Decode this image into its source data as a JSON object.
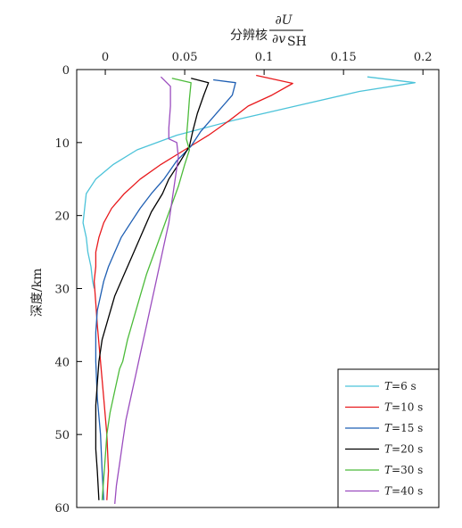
{
  "chart_data": {
    "type": "line",
    "orientation": "x-top, y-inverted (depth increases downward)",
    "xlabel_prefix": "分辨核",
    "xlabel_numerator": "∂U",
    "xlabel_denominator": "∂v",
    "xlabel_denominator_subscript": "SH",
    "ylabel": "深度/km",
    "xlim": [
      -0.018,
      0.21
    ],
    "ylim": [
      0,
      60
    ],
    "xticks": [
      0,
      0.05,
      0.1,
      0.15,
      0.2
    ],
    "xtick_labels": [
      "0",
      "0.05",
      "0.1",
      "0.15",
      "0.2"
    ],
    "yticks": [
      0,
      10,
      20,
      30,
      40,
      50,
      60
    ],
    "ytick_labels": [
      "0",
      "10",
      "20",
      "30",
      "40",
      "50",
      "60"
    ],
    "grid": false,
    "legend_position": "bottom-right",
    "series": [
      {
        "name": "T=6 s",
        "legend_var": "T",
        "legend_rest": "=6 s",
        "color": "#4cc3d9",
        "points": [
          [
            0.165,
            1
          ],
          [
            0.195,
            1.8
          ],
          [
            0.16,
            3
          ],
          [
            0.12,
            5
          ],
          [
            0.08,
            7
          ],
          [
            0.045,
            9
          ],
          [
            0.02,
            11
          ],
          [
            0.005,
            13
          ],
          [
            -0.006,
            15
          ],
          [
            -0.012,
            17
          ],
          [
            -0.013,
            19
          ],
          [
            -0.014,
            21
          ],
          [
            -0.012,
            23
          ],
          [
            -0.011,
            25
          ],
          [
            -0.009,
            27
          ],
          [
            -0.008,
            29
          ],
          [
            -0.007,
            30
          ]
        ]
      },
      {
        "name": "T=10 s",
        "legend_var": "T",
        "legend_rest": "=10 s",
        "color": "#e8191c",
        "points": [
          [
            0.095,
            0.8
          ],
          [
            0.118,
            1.9
          ],
          [
            0.105,
            3.5
          ],
          [
            0.09,
            5
          ],
          [
            0.078,
            7
          ],
          [
            0.065,
            9
          ],
          [
            0.05,
            11
          ],
          [
            0.035,
            13
          ],
          [
            0.022,
            15
          ],
          [
            0.012,
            17
          ],
          [
            0.004,
            19
          ],
          [
            -0.001,
            21
          ],
          [
            -0.004,
            23
          ],
          [
            -0.006,
            25
          ],
          [
            -0.006,
            27
          ],
          [
            -0.007,
            29
          ],
          [
            -0.006,
            32
          ],
          [
            -0.005,
            35
          ],
          [
            -0.003,
            40
          ],
          [
            -0.001,
            45
          ],
          [
            0.001,
            50
          ],
          [
            0.002,
            55
          ],
          [
            0.001,
            59
          ]
        ]
      },
      {
        "name": "T=15 s",
        "legend_var": "T",
        "legend_rest": "=15 s",
        "color": "#1f5fb3",
        "points": [
          [
            0.068,
            1.4
          ],
          [
            0.082,
            1.8
          ],
          [
            0.08,
            3.5
          ],
          [
            0.07,
            6
          ],
          [
            0.06,
            8.5
          ],
          [
            0.054,
            10.5
          ],
          [
            0.045,
            12.5
          ],
          [
            0.037,
            15
          ],
          [
            0.029,
            17
          ],
          [
            0.022,
            19
          ],
          [
            0.016,
            21
          ],
          [
            0.01,
            23
          ],
          [
            0.006,
            25
          ],
          [
            0.002,
            27
          ],
          [
            -0.001,
            29
          ],
          [
            -0.003,
            31
          ],
          [
            -0.005,
            33
          ],
          [
            -0.006,
            36
          ],
          [
            -0.006,
            40
          ],
          [
            -0.005,
            45
          ],
          [
            -0.003,
            50
          ],
          [
            -0.002,
            55
          ],
          [
            -0.001,
            59
          ]
        ]
      },
      {
        "name": "T=20 s",
        "legend_var": "T",
        "legend_rest": "=20 s",
        "color": "#000000",
        "points": [
          [
            0.054,
            1.2
          ],
          [
            0.065,
            1.8
          ],
          [
            0.062,
            3.5
          ],
          [
            0.058,
            6
          ],
          [
            0.055,
            8.5
          ],
          [
            0.053,
            10.5
          ],
          [
            0.046,
            13
          ],
          [
            0.04,
            15
          ],
          [
            0.036,
            17
          ],
          [
            0.029,
            19.5
          ],
          [
            0.024,
            22
          ],
          [
            0.018,
            25
          ],
          [
            0.012,
            28
          ],
          [
            0.006,
            31
          ],
          [
            0.002,
            34
          ],
          [
            -0.002,
            37
          ],
          [
            -0.004,
            40
          ],
          [
            -0.005,
            43
          ],
          [
            -0.006,
            46
          ],
          [
            -0.006,
            49
          ],
          [
            -0.006,
            52
          ],
          [
            -0.005,
            55
          ],
          [
            -0.004,
            59
          ]
        ]
      },
      {
        "name": "T=30 s",
        "legend_var": "T",
        "legend_rest": "=30 s",
        "color": "#4cbb3a",
        "points": [
          [
            0.042,
            1.2
          ],
          [
            0.054,
            1.8
          ],
          [
            0.053,
            4
          ],
          [
            0.052,
            7
          ],
          [
            0.051,
            9.5
          ],
          [
            0.053,
            11
          ],
          [
            0.05,
            13
          ],
          [
            0.046,
            16
          ],
          [
            0.041,
            19
          ],
          [
            0.036,
            22
          ],
          [
            0.031,
            25
          ],
          [
            0.026,
            28
          ],
          [
            0.022,
            31
          ],
          [
            0.018,
            34
          ],
          [
            0.014,
            37
          ],
          [
            0.011,
            40
          ],
          [
            0.009,
            41
          ],
          [
            0.006,
            44
          ],
          [
            0.003,
            47
          ],
          [
            0.001,
            50
          ],
          [
            0.0,
            53
          ],
          [
            -0.001,
            56
          ],
          [
            -0.002,
            59
          ]
        ]
      },
      {
        "name": "T=40 s",
        "legend_var": "T",
        "legend_rest": "=40 s",
        "color": "#9b4dbf",
        "points": [
          [
            0.035,
            1.0
          ],
          [
            0.041,
            2.3
          ],
          [
            0.041,
            5
          ],
          [
            0.04,
            8
          ],
          [
            0.04,
            9.5
          ],
          [
            0.045,
            10
          ],
          [
            0.046,
            12
          ],
          [
            0.044,
            15
          ],
          [
            0.042,
            18
          ],
          [
            0.04,
            21
          ],
          [
            0.037,
            24
          ],
          [
            0.034,
            27
          ],
          [
            0.031,
            30
          ],
          [
            0.028,
            33
          ],
          [
            0.025,
            36
          ],
          [
            0.022,
            39
          ],
          [
            0.019,
            42
          ],
          [
            0.016,
            45
          ],
          [
            0.013,
            48
          ],
          [
            0.011,
            51
          ],
          [
            0.009,
            54
          ],
          [
            0.007,
            57
          ],
          [
            0.006,
            59.5
          ]
        ]
      }
    ]
  }
}
